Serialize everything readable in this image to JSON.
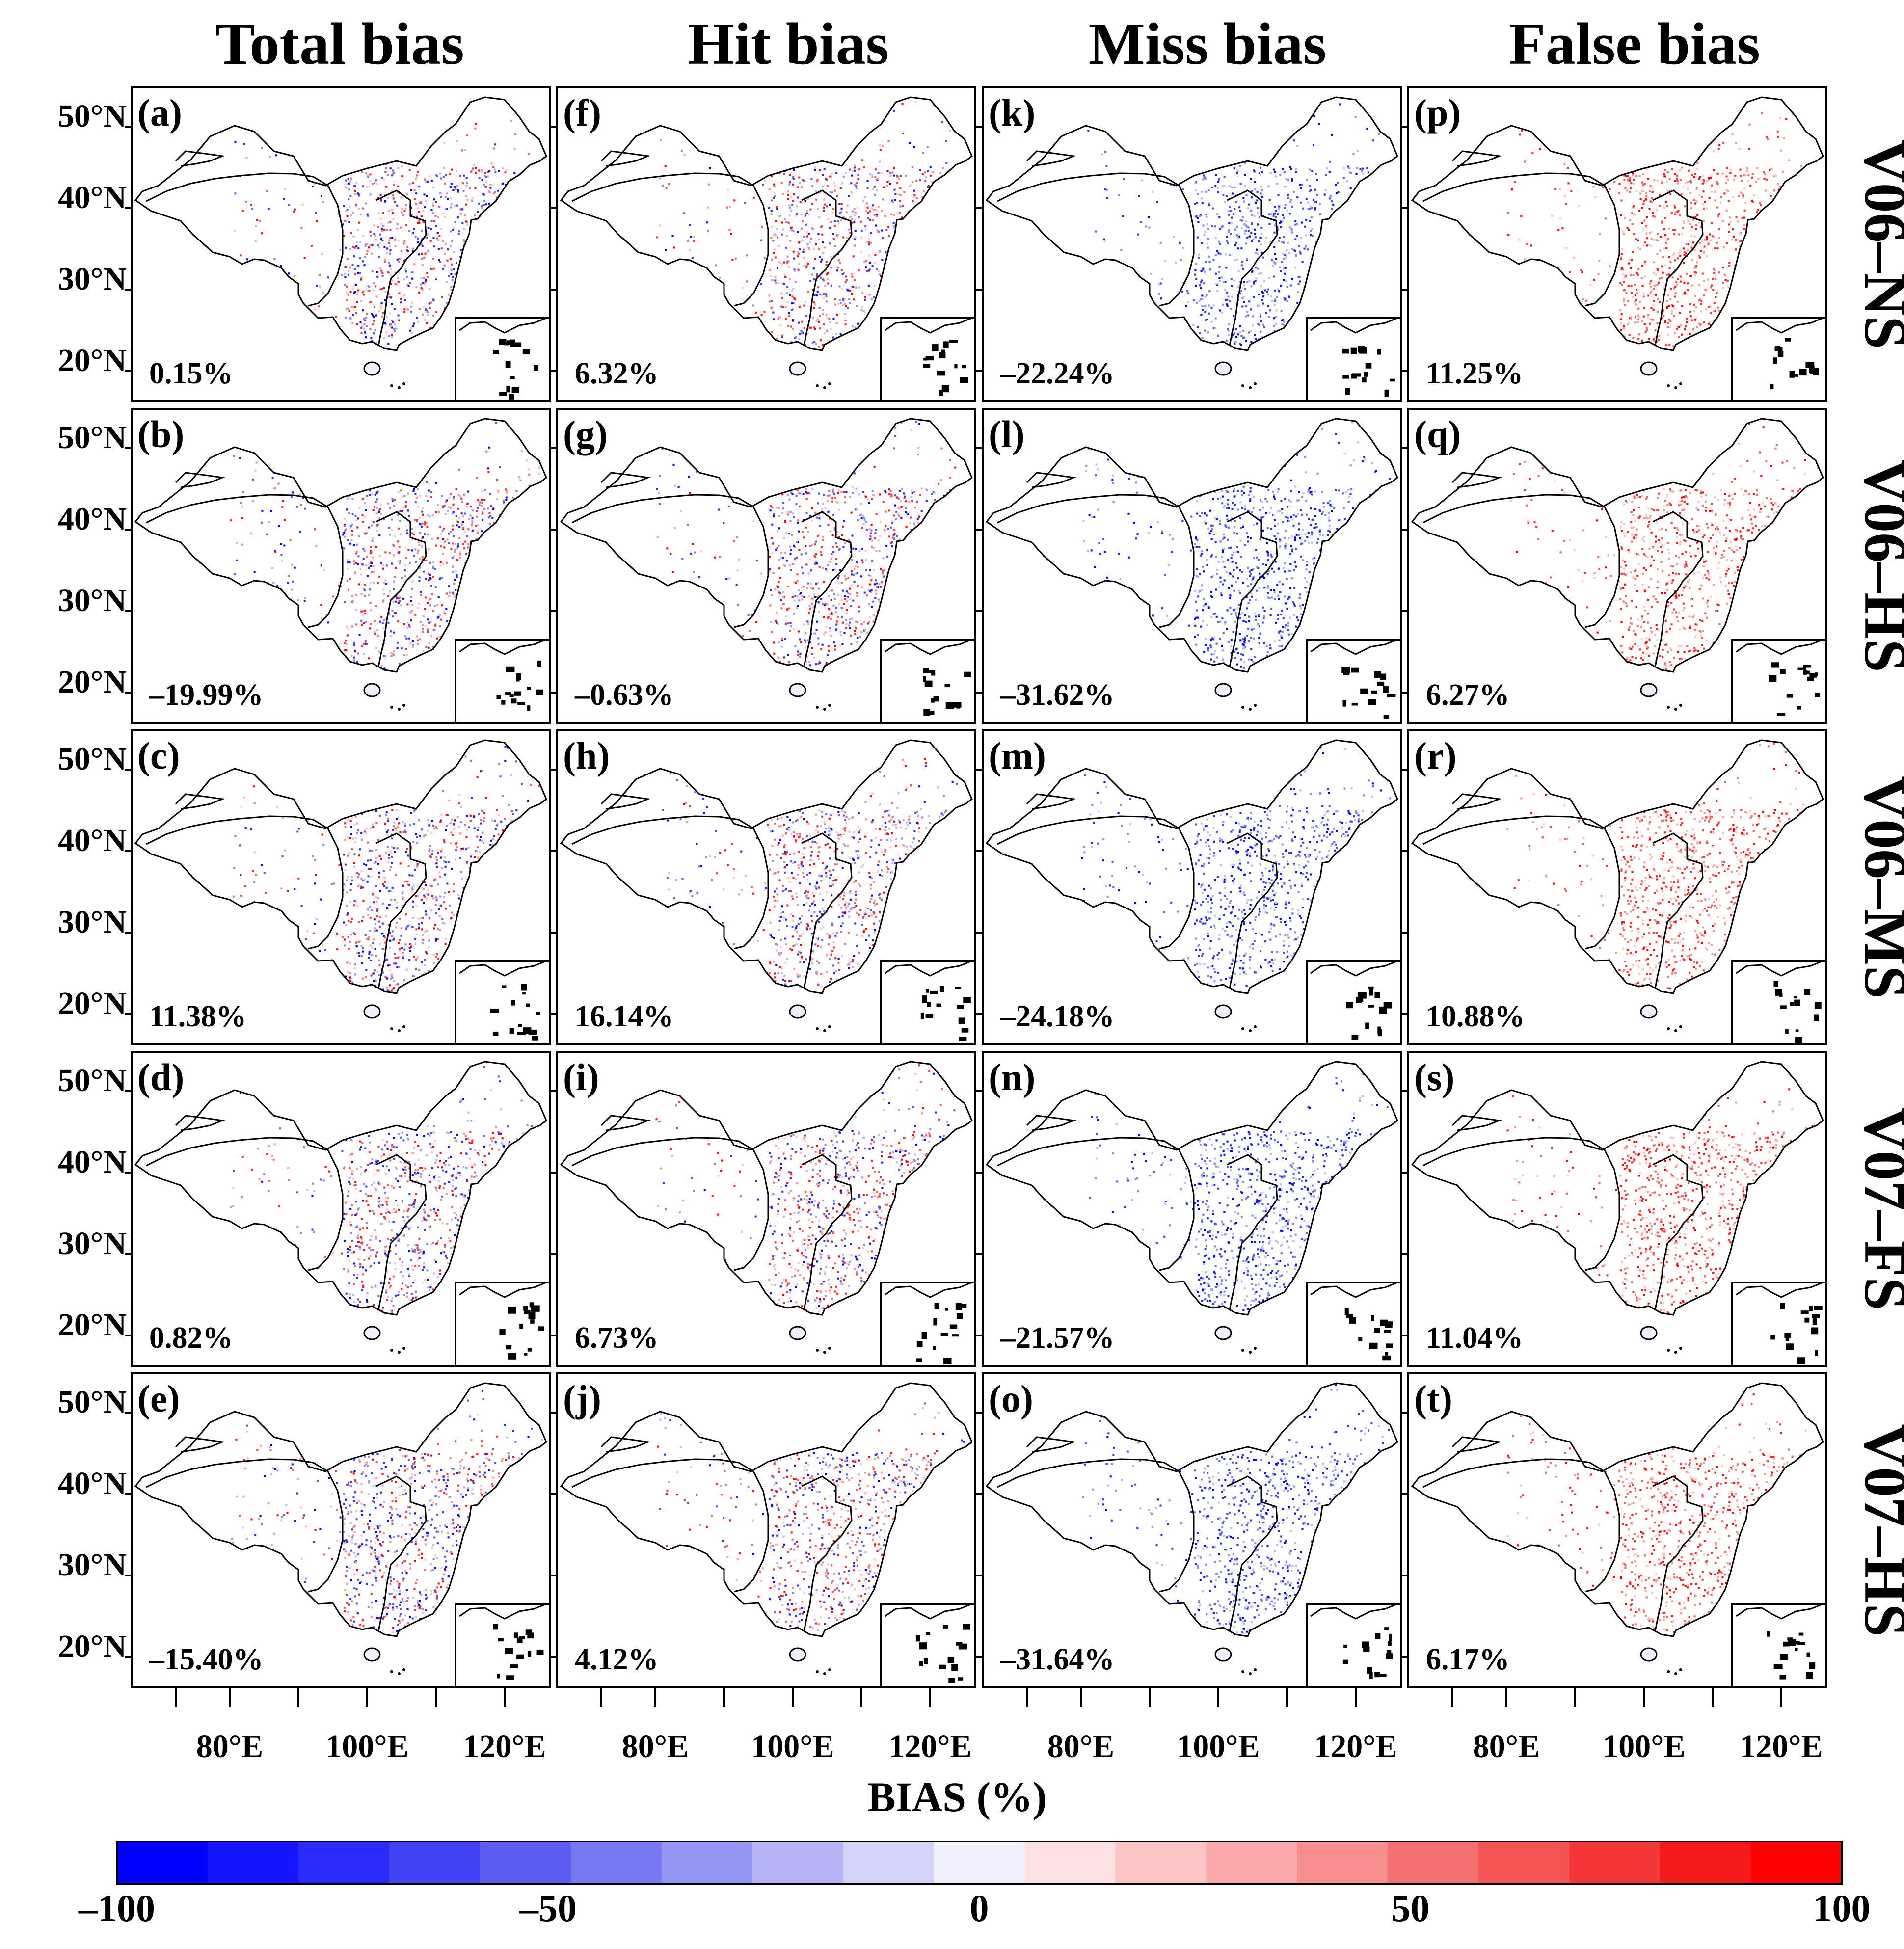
{
  "figure": {
    "column_titles": [
      "Total bias",
      "Hit bias",
      "Miss bias",
      "False bias"
    ],
    "row_titles": [
      "V06–NS",
      "V06–HS",
      "V06–MS",
      "V07–FS",
      "V07–HS"
    ],
    "lat_labels": [
      "50°N",
      "40°N",
      "30°N",
      "20°N"
    ],
    "lon_labels": [
      "80°E",
      "100°E",
      "120°E"
    ],
    "panels": [
      {
        "label": "(a)",
        "value": "0.15%",
        "bias_type": "total",
        "product": "V06–NS"
      },
      {
        "label": "(f)",
        "value": "6.32%",
        "bias_type": "hit",
        "product": "V06–NS"
      },
      {
        "label": "(k)",
        "value": "–22.24%",
        "bias_type": "miss",
        "product": "V06–NS"
      },
      {
        "label": "(p)",
        "value": "11.25%",
        "bias_type": "false",
        "product": "V06–NS"
      },
      {
        "label": "(b)",
        "value": "–19.99%",
        "bias_type": "total",
        "product": "V06–HS"
      },
      {
        "label": "(g)",
        "value": "–0.63%",
        "bias_type": "hit",
        "product": "V06–HS"
      },
      {
        "label": "(l)",
        "value": "–31.62%",
        "bias_type": "miss",
        "product": "V06–HS"
      },
      {
        "label": "(q)",
        "value": "6.27%",
        "bias_type": "false",
        "product": "V06–HS"
      },
      {
        "label": "(c)",
        "value": "11.38%",
        "bias_type": "total",
        "product": "V06–MS"
      },
      {
        "label": "(h)",
        "value": "16.14%",
        "bias_type": "hit",
        "product": "V06–MS"
      },
      {
        "label": "(m)",
        "value": "–24.18%",
        "bias_type": "miss",
        "product": "V06–MS"
      },
      {
        "label": "(r)",
        "value": "10.88%",
        "bias_type": "false",
        "product": "V06–MS"
      },
      {
        "label": "(d)",
        "value": "0.82%",
        "bias_type": "total",
        "product": "V07–FS"
      },
      {
        "label": "(i)",
        "value": "6.73%",
        "bias_type": "hit",
        "product": "V07–FS"
      },
      {
        "label": "(n)",
        "value": "–21.57%",
        "bias_type": "miss",
        "product": "V07–FS"
      },
      {
        "label": "(s)",
        "value": "11.04%",
        "bias_type": "false",
        "product": "V07–FS"
      },
      {
        "label": "(e)",
        "value": "–15.40%",
        "bias_type": "total",
        "product": "V07–HS"
      },
      {
        "label": "(j)",
        "value": "4.12%",
        "bias_type": "hit",
        "product": "V07–HS"
      },
      {
        "label": "(o)",
        "value": "–31.64%",
        "bias_type": "miss",
        "product": "V07–HS"
      },
      {
        "label": "(t)",
        "value": "6.17%",
        "bias_type": "false",
        "product": "V07–HS"
      }
    ],
    "colorbar": {
      "title": "BIAS (%)",
      "range": [
        -100,
        100
      ],
      "tick_labels": [
        "–100",
        "–50",
        "0",
        "50",
        "100"
      ],
      "tick_values": [
        -100,
        -50,
        0,
        50,
        100
      ],
      "colors": [
        "#0000ff",
        "#1414ff",
        "#2b2bf9",
        "#4242f5",
        "#5c5cf3",
        "#7777f2",
        "#9595f4",
        "#b4b4f6",
        "#d3d3f9",
        "#f0f0fc",
        "#fde0e0",
        "#fbc5c5",
        "#f9a9a9",
        "#f78d8d",
        "#f57070",
        "#f35353",
        "#f23636",
        "#f51a1a",
        "#ff0000"
      ]
    },
    "colors": {
      "negative": "#0000ff",
      "positive": "#ff0000",
      "border": "#000000"
    }
  }
}
